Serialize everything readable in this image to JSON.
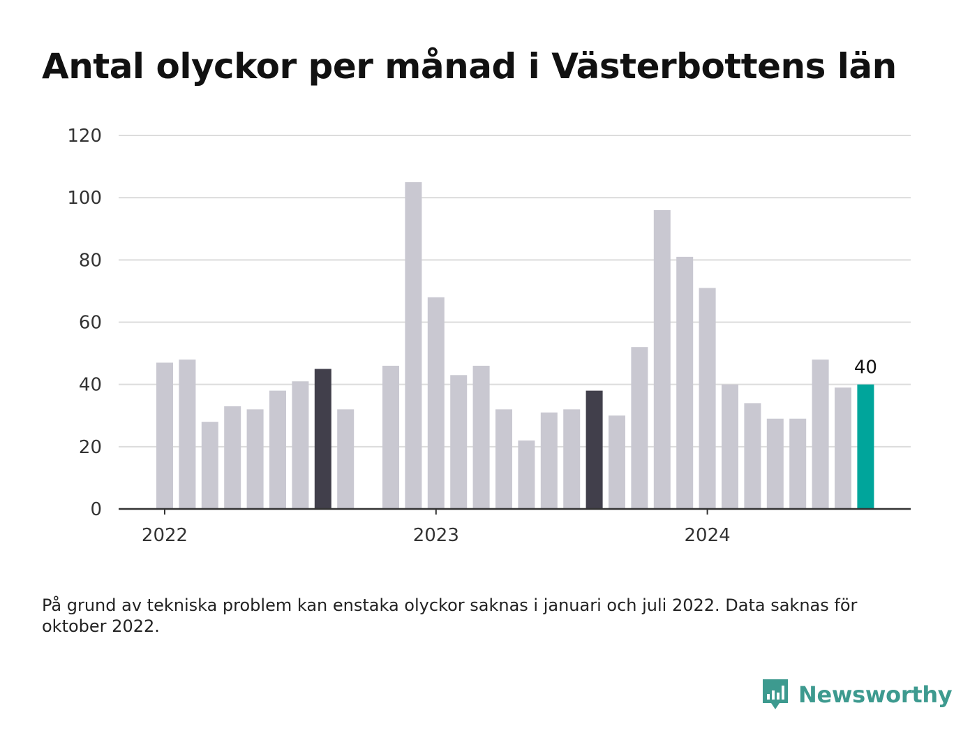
{
  "chart_data": {
    "type": "bar",
    "title": "Antal olyckor per månad i Västerbottens län",
    "xlabel": "",
    "ylabel": "",
    "ylim": [
      0,
      120
    ],
    "yticks": [
      "0",
      "20",
      "40",
      "60",
      "80",
      "100",
      "120"
    ],
    "year_ticks": [
      {
        "label": "2022",
        "month": "2022-01"
      },
      {
        "label": "2023",
        "month": "2023-01"
      },
      {
        "label": "2024",
        "month": "2024-01"
      }
    ],
    "months": [
      "2022-01",
      "2022-02",
      "2022-03",
      "2022-04",
      "2022-05",
      "2022-06",
      "2022-07",
      "2022-08",
      "2022-09",
      "2022-10",
      "2022-11",
      "2022-12",
      "2023-01",
      "2023-02",
      "2023-03",
      "2023-04",
      "2023-05",
      "2023-06",
      "2023-07",
      "2023-08",
      "2023-09",
      "2023-10",
      "2023-11",
      "2023-12",
      "2024-01",
      "2024-02",
      "2024-03",
      "2024-04",
      "2024-05",
      "2024-06",
      "2024-07",
      "2024-08"
    ],
    "values": [
      47,
      48,
      28,
      33,
      32,
      38,
      41,
      45,
      32,
      null,
      46,
      105,
      68,
      43,
      46,
      32,
      22,
      31,
      32,
      38,
      30,
      52,
      96,
      81,
      71,
      40,
      34,
      29,
      29,
      48,
      39,
      40
    ],
    "highlight_months": [
      "2022-08",
      "2023-08"
    ],
    "latest_value_label": "40",
    "colors": {
      "default": "#c9c8d1",
      "highlight": "#413f4b",
      "latest": "#00a59b",
      "grid": "#dcdcdc",
      "axis": "#333333"
    }
  },
  "footnote": "På grund av tekniska problem kan enstaka olyckor saknas i januari och juli 2022. Data saknas för oktober 2022.",
  "brand": {
    "name": "Newsworthy",
    "icon": "bar-chart-speech-bubble-icon",
    "color": "#3d9a8f"
  }
}
